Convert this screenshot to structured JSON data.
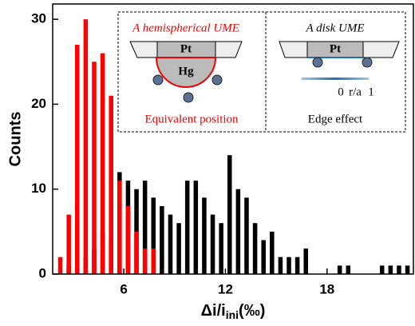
{
  "chart_data": {
    "type": "histogram",
    "ylabel": "Counts",
    "xlabel": {
      "main": "Δi/i",
      "sub": "ini",
      "unit": "(‰)"
    },
    "bins": [
      2.0,
      2.5,
      3.0,
      3.5,
      4.0,
      4.5,
      5.0,
      5.5,
      6.0,
      6.5,
      7.0,
      7.5,
      8.0,
      8.5,
      9.0,
      9.5,
      10.0,
      10.5,
      11.0,
      11.5,
      12.0,
      12.5,
      13.0,
      13.5,
      14.0,
      14.5,
      15.0,
      15.5,
      16.0,
      16.5,
      17.0,
      17.5,
      18.0,
      18.5,
      19.0,
      19.5,
      20.0,
      20.5,
      21.0,
      21.5,
      22.0,
      22.5,
      23.0
    ],
    "series": [
      {
        "color": "#000000",
        "values": [
          0,
          1,
          1,
          2,
          3,
          5,
          4,
          12,
          11,
          10,
          11,
          9,
          8,
          7,
          6,
          11,
          11,
          9,
          7,
          6,
          14,
          10,
          9,
          6,
          4,
          5,
          2,
          2,
          2,
          3,
          0,
          0,
          0,
          1,
          1,
          0,
          0,
          0,
          1,
          1,
          1,
          1
        ]
      },
      {
        "color": "#ff0000",
        "values": [
          2,
          7,
          27,
          30,
          25,
          26,
          21,
          11,
          8,
          5,
          3,
          3,
          0,
          0,
          0,
          0,
          0,
          0,
          0,
          0,
          0,
          0,
          0,
          0,
          0,
          0,
          0,
          0,
          0,
          0,
          0,
          0,
          0,
          0,
          0,
          0,
          0,
          0,
          0,
          0,
          0,
          0
        ]
      }
    ],
    "xlim": [
      1.8,
      23.1
    ],
    "ylim": [
      0,
      31.8
    ],
    "xticks": [
      6,
      12,
      18
    ],
    "yticks": [
      0,
      10,
      20,
      30
    ]
  },
  "inset": {
    "left": {
      "title": "A hemispherical UME",
      "electrode": "Pt",
      "drop": "Hg",
      "caption": "Equivalent position"
    },
    "right": {
      "title": "A disk UME",
      "electrode": "Pt",
      "scale": [
        "0",
        "r/a",
        "1"
      ],
      "caption": "Edge effect"
    }
  }
}
